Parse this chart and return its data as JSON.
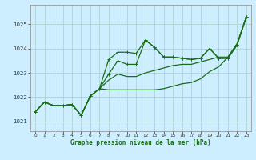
{
  "xlabel": "Graphe pression niveau de la mer (hPa)",
  "background_color": "#cceeff",
  "grid_color": "#aacccc",
  "line_color": "#1a6e1a",
  "xlim": [
    -0.5,
    23.5
  ],
  "ylim": [
    1020.6,
    1025.8
  ],
  "yticks": [
    1021,
    1022,
    1023,
    1024,
    1025
  ],
  "xticks": [
    0,
    1,
    2,
    3,
    4,
    5,
    6,
    7,
    8,
    9,
    10,
    11,
    12,
    13,
    14,
    15,
    16,
    17,
    18,
    19,
    20,
    21,
    22,
    23
  ],
  "series1_x": [
    0,
    1,
    2,
    3,
    4,
    5,
    6,
    7,
    8,
    9,
    10,
    11,
    12,
    13,
    14,
    15,
    16,
    17,
    18,
    19,
    20,
    21,
    22,
    23
  ],
  "series1": [
    1021.4,
    1021.8,
    1021.65,
    1021.65,
    1021.7,
    1021.25,
    1022.05,
    1022.35,
    1023.55,
    1023.85,
    1023.85,
    1023.8,
    1024.35,
    1024.05,
    1023.65,
    1023.65,
    1023.6,
    1023.55,
    1023.6,
    1024.0,
    1023.6,
    1023.6,
    1024.15,
    1025.3
  ],
  "series2_x": [
    0,
    1,
    2,
    3,
    4,
    5,
    6,
    7,
    8,
    9,
    10,
    11,
    12,
    13,
    14,
    15,
    16,
    17,
    18,
    19,
    20,
    21,
    22,
    23
  ],
  "series2": [
    1021.4,
    1021.8,
    1021.65,
    1021.65,
    1021.7,
    1021.25,
    1022.05,
    1022.35,
    1022.3,
    1022.3,
    1022.3,
    1022.3,
    1022.3,
    1022.3,
    1022.35,
    1022.45,
    1022.55,
    1022.6,
    1022.75,
    1023.05,
    1023.25,
    1023.65,
    1024.2,
    1025.3
  ],
  "series3_x": [
    0,
    1,
    2,
    3,
    4,
    5,
    6,
    7,
    8,
    9,
    10,
    11,
    12,
    13,
    14,
    15,
    16,
    17,
    18,
    19,
    20,
    21,
    22,
    23
  ],
  "series3": [
    1021.4,
    1021.8,
    1021.65,
    1021.65,
    1021.7,
    1021.25,
    1022.05,
    1022.35,
    1022.7,
    1022.95,
    1022.85,
    1022.85,
    1023.0,
    1023.1,
    1023.2,
    1023.3,
    1023.35,
    1023.35,
    1023.45,
    1023.55,
    1023.65,
    1023.65,
    1024.2,
    1025.3
  ],
  "series4_x": [
    0,
    1,
    2,
    3,
    4,
    5,
    6,
    7,
    8,
    9,
    10,
    11,
    12,
    13,
    14,
    15,
    16,
    17,
    18,
    19,
    20,
    21,
    22,
    23
  ],
  "series4": [
    1021.4,
    1021.8,
    1021.65,
    1021.65,
    1021.7,
    1021.25,
    1022.05,
    1022.35,
    1022.95,
    1023.5,
    1023.35,
    1023.35,
    1024.35,
    1024.05,
    1023.65,
    1023.65,
    1023.6,
    1023.55,
    1023.6,
    1024.0,
    1023.6,
    1023.6,
    1024.15,
    1025.3
  ],
  "marker_indices1": [
    0,
    1,
    2,
    3,
    4,
    5,
    6,
    7,
    8,
    9,
    10,
    11,
    12,
    13,
    14,
    15,
    16,
    17,
    18,
    19,
    20,
    21,
    22,
    23
  ],
  "marker_indices2": [],
  "marker_indices3": [],
  "marker_indices4": [
    8,
    9,
    10,
    11,
    12,
    13,
    14,
    15,
    16,
    17,
    18,
    19,
    20,
    21,
    22,
    23
  ]
}
